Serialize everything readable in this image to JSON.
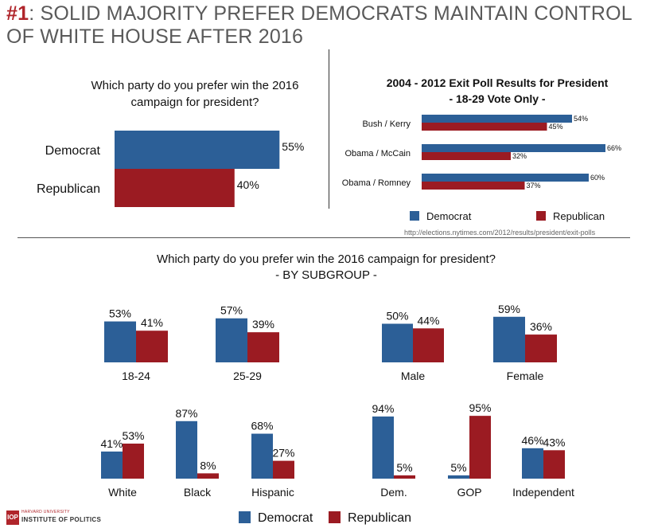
{
  "header": {
    "number": "#1",
    "title_rest": ": SOLID MAJORITY PREFER DEMOCRATS MAINTAIN CONTROL OF WHITE HOUSE AFTER 2016"
  },
  "colors": {
    "democrat": "#2c5f97",
    "republican": "#9b1b22"
  },
  "logo": {
    "mark": "IOP",
    "small": "HARVARD UNIVERSITY",
    "main": "INSTITUTE OF POLITICS"
  },
  "source": "http://elections.nytimes.com/2012/results/president/exit-polls",
  "chart_data": [
    {
      "type": "bar",
      "orientation": "horizontal",
      "title": "Which party do you prefer win the 2016 campaign for president?",
      "categories": [
        "Democrat",
        "Republican"
      ],
      "values": [
        55,
        40
      ],
      "value_labels": [
        "55%",
        "40%"
      ],
      "max": 65
    },
    {
      "type": "bar",
      "orientation": "horizontal",
      "title": "2004 - 2012 Exit Poll Results for President",
      "subtitle": "- 18-29 Vote Only -",
      "categories": [
        "Bush / Kerry",
        "Obama / McCain",
        "Obama / Romney"
      ],
      "series": [
        {
          "name": "Democrat",
          "values": [
            54,
            66,
            60
          ],
          "labels": [
            "54%",
            "66%",
            "60%"
          ]
        },
        {
          "name": "Republican",
          "values": [
            45,
            32,
            37
          ],
          "labels": [
            "45%",
            "32%",
            "37%"
          ]
        }
      ],
      "legend": "bottom",
      "max": 70
    },
    {
      "type": "bar",
      "orientation": "vertical",
      "title": "Which party do you prefer win the 2016 campaign for president?",
      "subtitle": "- BY SUBGROUP -",
      "groups": [
        {
          "label": "18-24",
          "dem": 53,
          "rep": 41,
          "dem_label": "53%",
          "rep_label": "41%"
        },
        {
          "label": "25-29",
          "dem": 57,
          "rep": 39,
          "dem_label": "57%",
          "rep_label": "39%"
        },
        {
          "label": "Male",
          "dem": 50,
          "rep": 44,
          "dem_label": "50%",
          "rep_label": "44%"
        },
        {
          "label": "Female",
          "dem": 59,
          "rep": 36,
          "dem_label": "59%",
          "rep_label": "36%"
        },
        {
          "label": "White",
          "dem": 41,
          "rep": 53,
          "dem_label": "41%",
          "rep_label": "53%"
        },
        {
          "label": "Black",
          "dem": 87,
          "rep": 8,
          "dem_label": "87%",
          "rep_label": "8%"
        },
        {
          "label": "Hispanic",
          "dem": 68,
          "rep": 27,
          "dem_label": "68%",
          "rep_label": "27%"
        },
        {
          "label": "Dem.",
          "dem": 94,
          "rep": 5,
          "dem_label": "94%",
          "rep_label": "5%"
        },
        {
          "label": "GOP",
          "dem": 5,
          "rep": 95,
          "dem_label": "5%",
          "rep_label": "95%"
        },
        {
          "label": "Independent",
          "dem": 46,
          "rep": 43,
          "dem_label": "46%",
          "rep_label": "43%"
        }
      ],
      "legend": {
        "democrat": "Democrat",
        "republican": "Republican",
        "position": "bottom"
      }
    }
  ]
}
